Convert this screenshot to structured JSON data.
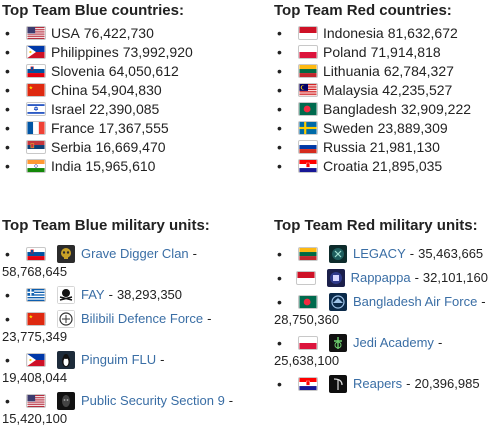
{
  "blue": {
    "countries_title": "Top Team Blue countries:",
    "countries": [
      {
        "name": "USA",
        "value": "76,422,730",
        "flag": "us-flag"
      },
      {
        "name": "Philippines",
        "value": "73,992,920",
        "flag": "ph-flag"
      },
      {
        "name": "Slovenia",
        "value": "64,050,612",
        "flag": "si-flag"
      },
      {
        "name": "China",
        "value": "54,904,830",
        "flag": "cn-flag"
      },
      {
        "name": "Israel",
        "value": "22,390,085",
        "flag": "il-flag"
      },
      {
        "name": "France",
        "value": "17,367,555",
        "flag": "fr-flag"
      },
      {
        "name": "Serbia",
        "value": "16,669,470",
        "flag": "rs-flag"
      },
      {
        "name": "India",
        "value": "15,965,610",
        "flag": "in-flag"
      }
    ],
    "units_title": "Top Team Blue military units:",
    "units": [
      {
        "name": "Grave Digger Clan",
        "value": "58,768,645",
        "flag": "si-flag",
        "logo": "skull-logo"
      },
      {
        "name": "FAY",
        "value": "38,293,350",
        "flag": "gr-flag",
        "logo": "pirate-logo"
      },
      {
        "name": "Bilibili Defence Force",
        "value": "23,775,349",
        "flag": "cn-flag",
        "logo": "emblem-logo"
      },
      {
        "name": "Pinguim FLU",
        "value": "19,408,044",
        "flag": "ph-flag",
        "logo": "penguin-logo"
      },
      {
        "name": "Public Security Section 9",
        "value": "15,420,100",
        "flag": "us-flag",
        "logo": "mask-logo"
      }
    ]
  },
  "red": {
    "countries_title": "Top Team Red countries:",
    "countries": [
      {
        "name": "Indonesia",
        "value": "81,632,672",
        "flag": "id-flag"
      },
      {
        "name": "Poland",
        "value": "71,914,818",
        "flag": "pl-flag"
      },
      {
        "name": "Lithuania",
        "value": "62,784,327",
        "flag": "lt-flag"
      },
      {
        "name": "Malaysia",
        "value": "42,235,527",
        "flag": "my-flag"
      },
      {
        "name": "Bangladesh",
        "value": "32,909,222",
        "flag": "bd-flag"
      },
      {
        "name": "Sweden",
        "value": "23,889,309",
        "flag": "se-flag"
      },
      {
        "name": "Russia",
        "value": "21,981,130",
        "flag": "ru-flag"
      },
      {
        "name": "Croatia",
        "value": "21,895,035",
        "flag": "hr-flag"
      }
    ],
    "units_title": "Top Team Red military units:",
    "units": [
      {
        "name": "LEGACY",
        "value": "35,463,665",
        "flag": "lt-flag",
        "logo": "legacy-logo",
        "wrap": false
      },
      {
        "name": "Rappappa",
        "value": "32,101,160",
        "flag": "id-flag",
        "logo": "rappappa-logo",
        "wrap": false
      },
      {
        "name": "Bangladesh Air Force",
        "value": "28,750,360",
        "flag": "bd-flag",
        "logo": "airforce-logo",
        "wrap": true
      },
      {
        "name": "Jedi Academy",
        "value": "25,638,100",
        "flag": "pl-flag",
        "logo": "jedi-logo",
        "wrap": true
      },
      {
        "name": "Reapers",
        "value": "20,396,985",
        "flag": "hr-flag",
        "logo": "reaper-logo",
        "wrap": false
      }
    ]
  }
}
